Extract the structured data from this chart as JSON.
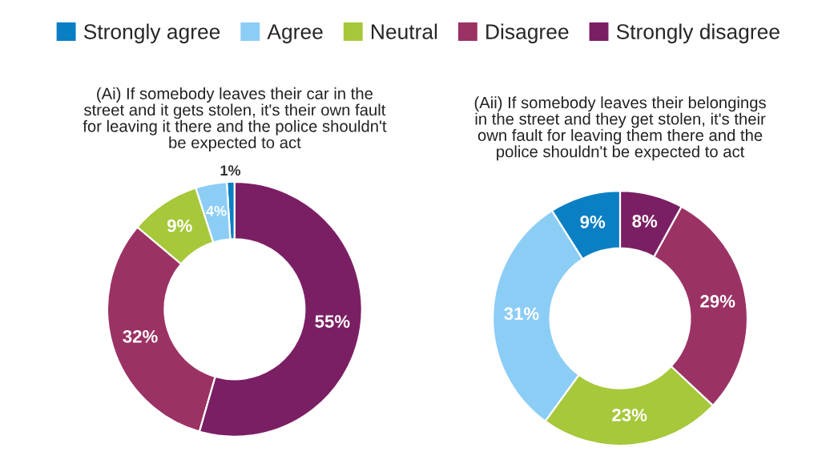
{
  "chart_data": [
    {
      "type": "donut",
      "title": "(Ai) If somebody leaves their car in the\nstreet and it gets stolen, it's their own fault\nfor leaving it there and the police shouldn't\nbe expected to act",
      "categories": [
        "Strongly agree",
        "Agree",
        "Neutral",
        "Disagree",
        "Strongly disagree"
      ],
      "values": [
        1,
        4,
        9,
        32,
        55
      ],
      "value_labels": [
        "1%",
        "4%",
        "9%",
        "32%",
        "55%"
      ],
      "colors": [
        "#0a7fc4",
        "#8ccdf6",
        "#a6c83a",
        "#9b3264",
        "#7b1f64"
      ],
      "legend": "top"
    },
    {
      "type": "donut",
      "title": "(Aii) If somebody leaves their belongings\nin the street and they get stolen, it's their\nown fault for leaving them there and the\npolice shouldn't be expected to act",
      "categories": [
        null,
        null,
        null,
        null,
        null
      ],
      "values": [
        9,
        31,
        23,
        29,
        8
      ],
      "value_labels": [
        "9%",
        "31%",
        "23%",
        "29%",
        "8%"
      ],
      "colors": [
        "#0a7fc4",
        "#8ccdf6",
        "#a6c83a",
        "#9b3264",
        "#7b1f64"
      ]
    }
  ]
}
